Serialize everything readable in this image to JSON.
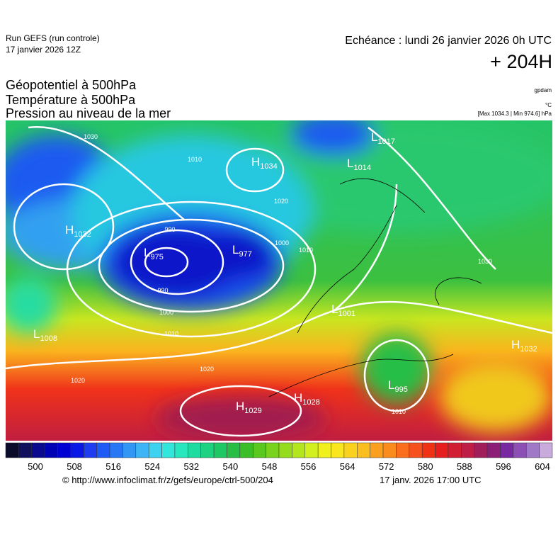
{
  "header": {
    "run": "Run GEFS (run controle)",
    "run_date": "17 janvier 2026 12Z",
    "echeance": "Echéance : lundi 26 janvier 2026 0h UTC",
    "lead": "+ 204H",
    "titles": [
      "Géopotentiel à 500hPa",
      "Température à 500hPa",
      "Pression au niveau de la mer"
    ],
    "unit_geopotential": "gpdam",
    "unit_temperature": "°C",
    "pressure_range": "[Max 1034.3 | Min 974.6] hPa"
  },
  "map": {
    "systems": [
      {
        "kind": "H",
        "value": "1032"
      },
      {
        "kind": "L",
        "value": "975"
      },
      {
        "kind": "L",
        "value": "977"
      },
      {
        "kind": "H",
        "value": "1034"
      },
      {
        "kind": "L",
        "value": "1017"
      },
      {
        "kind": "L",
        "value": "1014"
      },
      {
        "kind": "L",
        "value": "1001"
      },
      {
        "kind": "L",
        "value": "1008"
      },
      {
        "kind": "H",
        "value": "1029"
      },
      {
        "kind": "H",
        "value": "1028"
      },
      {
        "kind": "L",
        "value": "995"
      },
      {
        "kind": "H",
        "value": "1032"
      }
    ],
    "contour_labels": [
      "1030",
      "1010",
      "1020",
      "990",
      "990",
      "1000",
      "1010",
      "1020",
      "1000",
      "1010",
      "1030",
      "1020",
      "1010"
    ]
  },
  "colorbar": {
    "colors": [
      "#0b0b2a",
      "#10105c",
      "#0a0a8e",
      "#0000b4",
      "#0000d2",
      "#0a18e6",
      "#1e3cf0",
      "#1e5af5",
      "#2878f5",
      "#3296f5",
      "#3cb4f5",
      "#3cd2f0",
      "#32e6dc",
      "#28e6be",
      "#1edca0",
      "#1ed282",
      "#1ec864",
      "#28be46",
      "#3cbe28",
      "#5ac81e",
      "#78d21e",
      "#96dc1e",
      "#b4e61e",
      "#d2f01e",
      "#f0f01e",
      "#fae61e",
      "#fad21e",
      "#fabe1e",
      "#faa01e",
      "#fa8c1e",
      "#fa6e1e",
      "#f5501e",
      "#f03214",
      "#e61e1e",
      "#d21e32",
      "#be1e46",
      "#a01e5a",
      "#8c1e78",
      "#7828a0",
      "#8c50b4",
      "#a078c8",
      "#c8aadc"
    ],
    "ticks": [
      500,
      508,
      516,
      524,
      532,
      540,
      548,
      556,
      564,
      572,
      580,
      588,
      596,
      604
    ]
  },
  "footer": {
    "url": "© http://www.infoclimat.fr/z/gefs/europe/ctrl-500/204",
    "generated": "17 janv. 2026 17:00 UTC"
  }
}
